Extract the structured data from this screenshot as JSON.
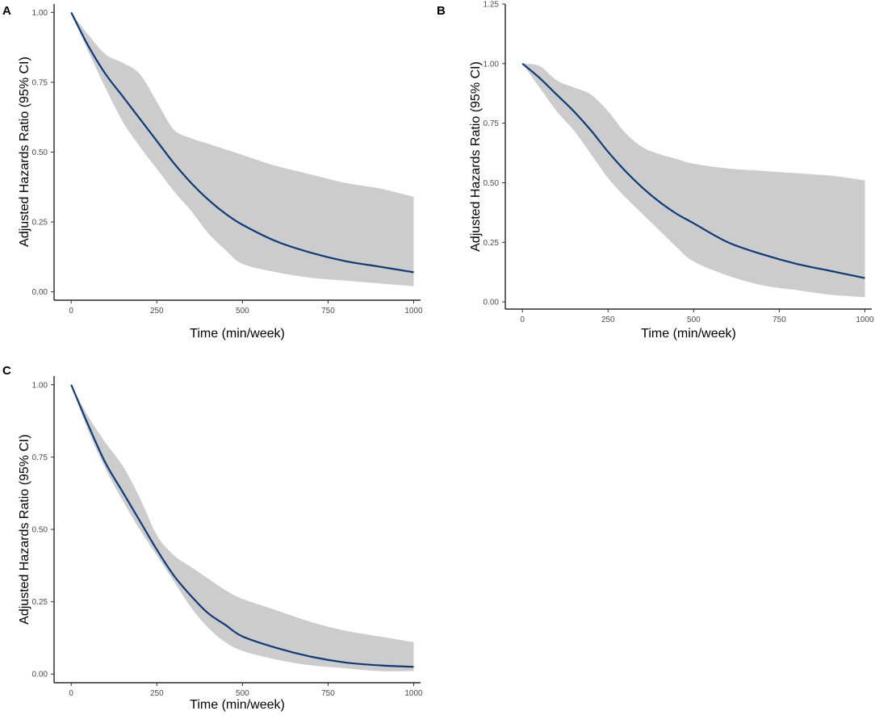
{
  "chart_data": [
    {
      "panel": "A",
      "type": "area",
      "xlabel": "Time (min/week)",
      "ylabel": "Adjusted Hazards Ratio (95% CI)",
      "xlim": [
        -50,
        1020
      ],
      "ylim": [
        -0.03,
        1.03
      ],
      "xticks": [
        0,
        250,
        500,
        750,
        1000
      ],
      "yticks": [
        0.0,
        0.25,
        0.5,
        0.75,
        1.0
      ],
      "xtick_labels": [
        "0",
        "250",
        "500",
        "750",
        "1000"
      ],
      "ytick_labels": [
        "0.00",
        "0.25",
        "0.50",
        "0.75",
        "1.00"
      ],
      "x": [
        0,
        50,
        100,
        150,
        200,
        250,
        300,
        350,
        400,
        450,
        500,
        600,
        700,
        800,
        900,
        1000
      ],
      "series": [
        {
          "name": "Adjusted HR",
          "values": [
            1.0,
            0.88,
            0.78,
            0.7,
            0.62,
            0.54,
            0.46,
            0.39,
            0.33,
            0.28,
            0.24,
            0.18,
            0.14,
            0.11,
            0.09,
            0.07
          ]
        },
        {
          "name": "Lower 95% CI",
          "values": [
            1.0,
            0.86,
            0.73,
            0.61,
            0.52,
            0.44,
            0.36,
            0.29,
            0.21,
            0.15,
            0.1,
            0.07,
            0.05,
            0.04,
            0.03,
            0.02
          ]
        },
        {
          "name": "Upper 95% CI",
          "values": [
            1.0,
            0.92,
            0.85,
            0.82,
            0.78,
            0.68,
            0.58,
            0.55,
            0.53,
            0.51,
            0.49,
            0.45,
            0.42,
            0.39,
            0.37,
            0.34
          ]
        }
      ]
    },
    {
      "panel": "B",
      "type": "area",
      "xlabel": "Time (min/week)",
      "ylabel": "Adjusted Hazards Ratio (95% CI)",
      "xlim": [
        -50,
        1020
      ],
      "ylim": [
        -0.03,
        1.25
      ],
      "xticks": [
        0,
        250,
        500,
        750,
        1000
      ],
      "yticks": [
        0.0,
        0.25,
        0.5,
        0.75,
        1.0,
        1.25
      ],
      "xtick_labels": [
        "0",
        "250",
        "500",
        "750",
        "1000"
      ],
      "ytick_labels": [
        "0.00",
        "0.25",
        "0.50",
        "0.75",
        "1.00",
        "1.25"
      ],
      "x": [
        0,
        50,
        100,
        150,
        200,
        250,
        300,
        350,
        400,
        450,
        500,
        600,
        700,
        800,
        900,
        1000
      ],
      "series": [
        {
          "name": "Adjusted HR",
          "values": [
            1.0,
            0.94,
            0.87,
            0.8,
            0.72,
            0.63,
            0.55,
            0.48,
            0.42,
            0.37,
            0.33,
            0.25,
            0.2,
            0.16,
            0.13,
            0.1
          ]
        },
        {
          "name": "Lower 95% CI",
          "values": [
            1.0,
            0.9,
            0.8,
            0.72,
            0.62,
            0.52,
            0.44,
            0.37,
            0.3,
            0.23,
            0.17,
            0.11,
            0.07,
            0.05,
            0.03,
            0.02
          ]
        },
        {
          "name": "Upper 95% CI",
          "values": [
            1.0,
            0.99,
            0.93,
            0.9,
            0.87,
            0.8,
            0.71,
            0.65,
            0.62,
            0.6,
            0.58,
            0.56,
            0.55,
            0.54,
            0.53,
            0.51
          ]
        }
      ]
    },
    {
      "panel": "C",
      "type": "area",
      "xlabel": "Time (min/week)",
      "ylabel": "Adjusted Hazards Ratio (95% CI)",
      "xlim": [
        -50,
        1020
      ],
      "ylim": [
        -0.03,
        1.03
      ],
      "xticks": [
        0,
        250,
        500,
        750,
        1000
      ],
      "yticks": [
        0.0,
        0.25,
        0.5,
        0.75,
        1.0
      ],
      "xtick_labels": [
        "0",
        "250",
        "500",
        "750",
        "1000"
      ],
      "ytick_labels": [
        "0.00",
        "0.25",
        "0.50",
        "0.75",
        "1.00"
      ],
      "x": [
        0,
        50,
        100,
        150,
        200,
        250,
        300,
        350,
        400,
        450,
        500,
        600,
        700,
        800,
        900,
        1000
      ],
      "series": [
        {
          "name": "Adjusted HR",
          "values": [
            1.0,
            0.86,
            0.73,
            0.63,
            0.53,
            0.43,
            0.34,
            0.27,
            0.21,
            0.17,
            0.13,
            0.09,
            0.06,
            0.04,
            0.03,
            0.025
          ]
        },
        {
          "name": "Lower 95% CI",
          "values": [
            1.0,
            0.84,
            0.71,
            0.6,
            0.5,
            0.41,
            0.32,
            0.23,
            0.16,
            0.11,
            0.08,
            0.05,
            0.03,
            0.02,
            0.01,
            0.01
          ]
        },
        {
          "name": "Upper 95% CI",
          "values": [
            1.0,
            0.89,
            0.8,
            0.72,
            0.61,
            0.48,
            0.41,
            0.37,
            0.33,
            0.29,
            0.26,
            0.22,
            0.18,
            0.15,
            0.13,
            0.11
          ]
        }
      ]
    }
  ],
  "colors": {
    "line": "#0d3b7a",
    "band": "#cccccc",
    "axis": "#000000",
    "tick_text": "#4d4d4d"
  }
}
